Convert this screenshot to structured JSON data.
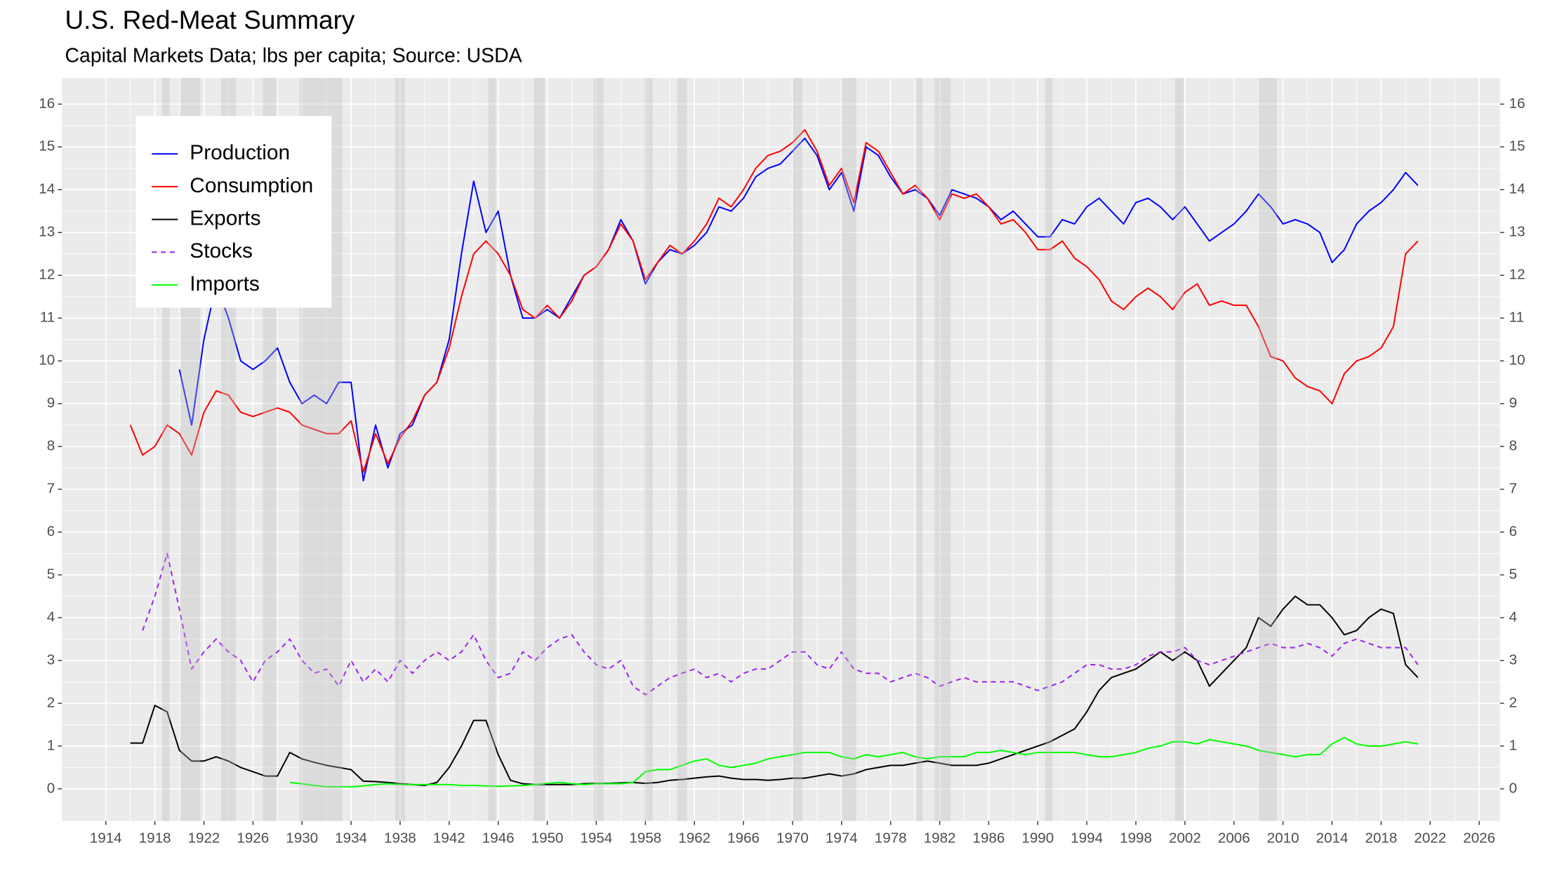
{
  "chart_data": {
    "type": "line",
    "title": "U.S. Red-Meat Summary",
    "subtitle": "Capital Markets Data; lbs per capita; Source: USDA",
    "x": [
      1916,
      1917,
      1918,
      1919,
      1920,
      1921,
      1922,
      1923,
      1924,
      1925,
      1926,
      1927,
      1928,
      1929,
      1930,
      1931,
      1932,
      1933,
      1934,
      1935,
      1936,
      1937,
      1938,
      1939,
      1940,
      1941,
      1942,
      1943,
      1944,
      1945,
      1946,
      1947,
      1948,
      1949,
      1950,
      1951,
      1952,
      1953,
      1954,
      1955,
      1956,
      1957,
      1958,
      1959,
      1960,
      1961,
      1962,
      1963,
      1964,
      1965,
      1966,
      1967,
      1968,
      1969,
      1970,
      1971,
      1972,
      1973,
      1974,
      1975,
      1976,
      1977,
      1978,
      1979,
      1980,
      1981,
      1982,
      1983,
      1984,
      1985,
      1986,
      1987,
      1988,
      1989,
      1990,
      1991,
      1992,
      1993,
      1994,
      1995,
      1996,
      1997,
      1998,
      1999,
      2000,
      2001,
      2002,
      2003,
      2004,
      2005,
      2006,
      2007,
      2008,
      2009,
      2010,
      2011,
      2012,
      2013,
      2014,
      2015,
      2016,
      2017,
      2018,
      2019,
      2020,
      2021
    ],
    "series": [
      {
        "name": "Production",
        "color": "#0000ff",
        "dash": "solid",
        "values": [
          null,
          null,
          null,
          null,
          9.8,
          8.5,
          10.5,
          11.8,
          11.0,
          10.0,
          9.8,
          10.0,
          10.3,
          9.5,
          9.0,
          9.2,
          9.0,
          9.5,
          9.5,
          7.2,
          8.5,
          7.5,
          8.3,
          8.5,
          9.2,
          9.5,
          10.5,
          12.5,
          14.2,
          13.0,
          13.5,
          12.0,
          11.0,
          11.0,
          11.2,
          11.0,
          11.5,
          12.0,
          12.2,
          12.6,
          13.3,
          12.8,
          11.8,
          12.3,
          12.6,
          12.5,
          12.7,
          13.0,
          13.6,
          13.5,
          13.8,
          14.3,
          14.5,
          14.6,
          14.9,
          15.2,
          14.8,
          14.0,
          14.4,
          13.5,
          15.0,
          14.8,
          14.3,
          13.9,
          14.0,
          13.8,
          13.4,
          14.0,
          13.9,
          13.8,
          13.6,
          13.3,
          13.5,
          13.2,
          12.9,
          12.9,
          13.3,
          13.2,
          13.6,
          13.8,
          13.5,
          13.2,
          13.7,
          13.8,
          13.6,
          13.3,
          13.6,
          13.2,
          12.8,
          13.0,
          13.2,
          13.5,
          13.9,
          13.6,
          13.2,
          13.3,
          13.2,
          13.0,
          12.3,
          12.6,
          13.2,
          13.5,
          13.7,
          14.0,
          14.4,
          14.1
        ]
      },
      {
        "name": "Consumption",
        "color": "#ff0000",
        "dash": "solid",
        "values": [
          8.5,
          7.8,
          8.0,
          8.5,
          8.3,
          7.8,
          8.8,
          9.3,
          9.2,
          8.8,
          8.7,
          8.8,
          8.9,
          8.8,
          8.5,
          8.4,
          8.3,
          8.3,
          8.6,
          7.4,
          8.3,
          7.6,
          8.2,
          8.6,
          9.2,
          9.5,
          10.3,
          11.5,
          12.5,
          12.8,
          12.5,
          12.0,
          11.2,
          11.0,
          11.3,
          11.0,
          11.4,
          12.0,
          12.2,
          12.6,
          13.2,
          12.8,
          11.9,
          12.3,
          12.7,
          12.5,
          12.8,
          13.2,
          13.8,
          13.6,
          14.0,
          14.5,
          14.8,
          14.9,
          15.1,
          15.4,
          14.9,
          14.1,
          14.5,
          13.7,
          15.1,
          14.9,
          14.4,
          13.9,
          14.1,
          13.8,
          13.3,
          13.9,
          13.8,
          13.9,
          13.6,
          13.2,
          13.3,
          13.0,
          12.6,
          12.6,
          12.8,
          12.4,
          12.2,
          11.9,
          11.4,
          11.2,
          11.5,
          11.7,
          11.5,
          11.2,
          11.6,
          11.8,
          11.3,
          11.4,
          11.3,
          11.3,
          10.8,
          10.1,
          10.0,
          9.6,
          9.4,
          9.3,
          9.0,
          9.7,
          10.0,
          10.1,
          10.3,
          10.8,
          12.5,
          12.8
        ]
      },
      {
        "name": "Exports",
        "color": "#000000",
        "dash": "solid",
        "values": [
          1.07,
          1.07,
          1.95,
          1.8,
          0.9,
          0.65,
          0.65,
          0.75,
          0.65,
          0.5,
          0.4,
          0.3,
          0.3,
          0.85,
          0.7,
          0.62,
          0.55,
          0.5,
          0.45,
          0.18,
          0.17,
          0.15,
          0.12,
          0.1,
          0.08,
          0.15,
          0.5,
          1.0,
          1.6,
          1.6,
          0.8,
          0.2,
          0.12,
          0.1,
          0.1,
          0.1,
          0.1,
          0.12,
          0.13,
          0.13,
          0.14,
          0.15,
          0.13,
          0.15,
          0.2,
          0.22,
          0.25,
          0.28,
          0.3,
          0.25,
          0.22,
          0.22,
          0.2,
          0.22,
          0.25,
          0.25,
          0.3,
          0.35,
          0.3,
          0.35,
          0.45,
          0.5,
          0.55,
          0.55,
          0.6,
          0.65,
          0.6,
          0.55,
          0.55,
          0.55,
          0.6,
          0.7,
          0.8,
          0.9,
          1.0,
          1.1,
          1.25,
          1.4,
          1.8,
          2.3,
          2.6,
          2.7,
          2.8,
          3.0,
          3.2,
          3.0,
          3.2,
          3.0,
          2.4,
          2.7,
          3.0,
          3.3,
          4.0,
          3.8,
          4.2,
          4.5,
          4.3,
          4.3,
          4.0,
          3.6,
          3.7,
          4.0,
          4.2,
          4.1,
          2.9,
          2.6
        ]
      },
      {
        "name": "Stocks",
        "color": "#a020f0",
        "dash": "dashed",
        "values": [
          null,
          3.7,
          4.5,
          5.5,
          4.2,
          2.8,
          3.2,
          3.5,
          3.2,
          3.0,
          2.5,
          3.0,
          3.2,
          3.5,
          3.0,
          2.7,
          2.8,
          2.4,
          3.0,
          2.5,
          2.8,
          2.5,
          3.0,
          2.7,
          3.0,
          3.2,
          3.0,
          3.2,
          3.6,
          3.0,
          2.6,
          2.7,
          3.2,
          3.0,
          3.3,
          3.5,
          3.6,
          3.2,
          2.9,
          2.8,
          3.0,
          2.4,
          2.2,
          2.4,
          2.6,
          2.7,
          2.8,
          2.6,
          2.7,
          2.5,
          2.7,
          2.8,
          2.8,
          3.0,
          3.2,
          3.2,
          2.9,
          2.8,
          3.2,
          2.8,
          2.7,
          2.7,
          2.5,
          2.6,
          2.7,
          2.6,
          2.4,
          2.5,
          2.6,
          2.5,
          2.5,
          2.5,
          2.5,
          2.4,
          2.3,
          2.4,
          2.5,
          2.7,
          2.9,
          2.9,
          2.8,
          2.8,
          2.9,
          3.1,
          3.2,
          3.2,
          3.3,
          3.0,
          2.9,
          3.0,
          3.1,
          3.2,
          3.3,
          3.4,
          3.3,
          3.3,
          3.4,
          3.3,
          3.1,
          3.4,
          3.5,
          3.4,
          3.3,
          3.3,
          3.3,
          2.9
        ]
      },
      {
        "name": "Imports",
        "color": "#00ff00",
        "dash": "solid",
        "values": [
          null,
          null,
          null,
          null,
          null,
          null,
          null,
          null,
          null,
          null,
          null,
          null,
          null,
          0.15,
          0.12,
          0.08,
          0.05,
          0.05,
          0.05,
          0.07,
          0.1,
          0.12,
          0.1,
          0.1,
          0.1,
          0.1,
          0.1,
          0.08,
          0.08,
          0.07,
          0.06,
          0.07,
          0.08,
          0.1,
          0.13,
          0.15,
          0.12,
          0.1,
          0.12,
          0.12,
          0.12,
          0.15,
          0.4,
          0.45,
          0.45,
          0.55,
          0.65,
          0.7,
          0.55,
          0.5,
          0.55,
          0.6,
          0.7,
          0.75,
          0.8,
          0.85,
          0.85,
          0.85,
          0.75,
          0.7,
          0.8,
          0.75,
          0.8,
          0.85,
          0.75,
          0.7,
          0.75,
          0.75,
          0.75,
          0.85,
          0.85,
          0.9,
          0.85,
          0.8,
          0.85,
          0.85,
          0.85,
          0.85,
          0.8,
          0.75,
          0.75,
          0.8,
          0.85,
          0.95,
          1.0,
          1.1,
          1.1,
          1.05,
          1.15,
          1.1,
          1.05,
          1.0,
          0.9,
          0.85,
          0.8,
          0.75,
          0.8,
          0.8,
          1.05,
          1.2,
          1.05,
          1.0,
          1.0,
          1.05,
          1.1,
          1.05
        ]
      }
    ],
    "shaded_periods": [
      [
        1918.6,
        1919.2
      ],
      [
        1920.1,
        1921.7
      ],
      [
        1923.4,
        1924.6
      ],
      [
        1926.8,
        1927.9
      ],
      [
        1929.8,
        1933.3
      ],
      [
        1937.6,
        1938.4
      ],
      [
        1945.2,
        1945.8
      ],
      [
        1948.9,
        1949.8
      ],
      [
        1953.8,
        1954.6
      ],
      [
        1957.9,
        1958.6
      ],
      [
        1960.6,
        1961.4
      ],
      [
        1970.0,
        1970.8
      ],
      [
        1974.0,
        1975.2
      ],
      [
        1980.1,
        1980.6
      ],
      [
        1981.6,
        1982.9
      ],
      [
        1990.6,
        1991.2
      ],
      [
        2001.2,
        2001.9
      ],
      [
        2008.0,
        2009.5
      ]
    ],
    "xlim": [
      1910.42,
      2027.7
    ],
    "ylim": [
      -0.75,
      16.61
    ],
    "xticks": [
      1914,
      1918,
      1922,
      1926,
      1930,
      1934,
      1938,
      1942,
      1946,
      1950,
      1954,
      1958,
      1962,
      1966,
      1970,
      1974,
      1978,
      1982,
      1986,
      1990,
      1994,
      1998,
      2002,
      2006,
      2010,
      2014,
      2018,
      2022,
      2026
    ],
    "yticks": [
      0,
      1,
      2,
      3,
      4,
      5,
      6,
      7,
      8,
      9,
      10,
      11,
      12,
      13,
      14,
      15,
      16
    ],
    "grid": true,
    "legend": "top-left"
  }
}
